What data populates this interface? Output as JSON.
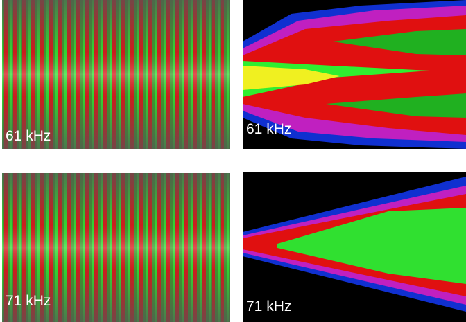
{
  "panels": [
    {
      "label": "61 kHz"
    },
    {
      "label": "61 kHz"
    },
    {
      "label": "71 kHz"
    },
    {
      "label": "71 kHz"
    }
  ]
}
